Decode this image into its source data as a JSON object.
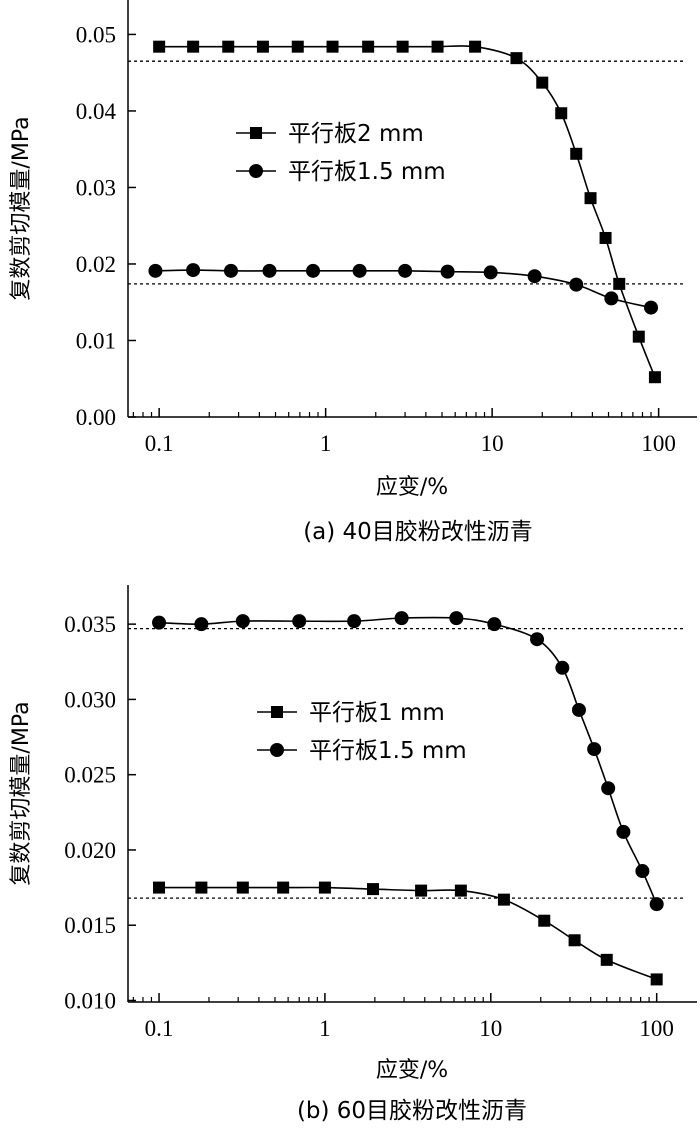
{
  "chart_data": [
    {
      "type": "line",
      "panel_label": "(a) 40目胶粉改性沥青",
      "xlabel": "应变/%",
      "ylabel": "复数剪切模量/MPa",
      "xscale": "log",
      "xlim": [
        0.065,
        170
      ],
      "ylim": [
        0.0,
        0.0545
      ],
      "x_ticks": [
        0.1,
        1,
        10,
        100
      ],
      "x_tick_labels": [
        "0.1",
        "1",
        "10",
        "100"
      ],
      "y_ticks": [
        0.0,
        0.01,
        0.02,
        0.03,
        0.04,
        0.05
      ],
      "y_tick_labels": [
        "0.00",
        "0.01",
        "0.02",
        "0.03",
        "0.04",
        "0.05"
      ],
      "reference_lines": [
        0.0465,
        0.0174
      ],
      "legend_position": "upper-middle",
      "series": [
        {
          "name": "平行板2 mm",
          "marker": "square",
          "x": [
            0.1,
            0.16,
            0.26,
            0.42,
            0.68,
            1.1,
            1.8,
            2.9,
            4.7,
            7.9,
            14,
            20,
            26,
            32,
            39,
            48,
            58,
            76,
            95
          ],
          "y": [
            0.0484,
            0.0484,
            0.0484,
            0.0484,
            0.0484,
            0.0484,
            0.0484,
            0.0484,
            0.0484,
            0.0484,
            0.0469,
            0.0437,
            0.0397,
            0.0344,
            0.0286,
            0.0234,
            0.0174,
            0.0105,
            0.0052
          ]
        },
        {
          "name": "平行板1.5 mm",
          "marker": "circle",
          "x": [
            0.095,
            0.16,
            0.27,
            0.46,
            0.84,
            1.6,
            3.0,
            5.4,
            9.8,
            18,
            32,
            52,
            90
          ],
          "y": [
            0.0191,
            0.0192,
            0.0191,
            0.0191,
            0.0191,
            0.0191,
            0.0191,
            0.019,
            0.0189,
            0.0184,
            0.0173,
            0.0155,
            0.0143
          ]
        }
      ]
    },
    {
      "type": "line",
      "panel_label": "(b) 60目胶粉改性沥青",
      "xlabel": "应变/%",
      "ylabel": "复数剪切模量/MPa",
      "xscale": "log",
      "xlim": [
        0.065,
        175
      ],
      "ylim": [
        0.0099,
        0.0376
      ],
      "x_ticks": [
        0.1,
        1,
        10,
        100
      ],
      "x_tick_labels": [
        "0.1",
        "1",
        "10",
        "100"
      ],
      "y_ticks": [
        0.01,
        0.015,
        0.02,
        0.025,
        0.03,
        0.035
      ],
      "y_tick_labels": [
        "0.010",
        "0.015",
        "0.020",
        "0.025",
        "0.030",
        "0.035"
      ],
      "reference_lines": [
        0.0347,
        0.0168
      ],
      "legend_position": "upper-middle",
      "series": [
        {
          "name": "平行板1 mm",
          "marker": "square",
          "x": [
            0.1,
            0.18,
            0.32,
            0.56,
            1.0,
            1.95,
            3.8,
            6.6,
            12,
            21,
            32,
            50,
            100
          ],
          "y": [
            0.0175,
            0.0175,
            0.0175,
            0.0175,
            0.0175,
            0.0174,
            0.0173,
            0.0173,
            0.0167,
            0.0153,
            0.014,
            0.0127,
            0.0114
          ]
        },
        {
          "name": "平行板1.5 mm",
          "marker": "circle",
          "x": [
            0.1,
            0.18,
            0.32,
            0.7,
            1.5,
            2.9,
            6.2,
            10.5,
            19,
            27,
            34,
            42,
            51,
            63,
            82,
            100
          ],
          "y": [
            0.0351,
            0.035,
            0.0352,
            0.0352,
            0.0352,
            0.0354,
            0.0354,
            0.035,
            0.034,
            0.0321,
            0.0293,
            0.0267,
            0.0241,
            0.0212,
            0.0186,
            0.0164
          ]
        }
      ]
    }
  ]
}
